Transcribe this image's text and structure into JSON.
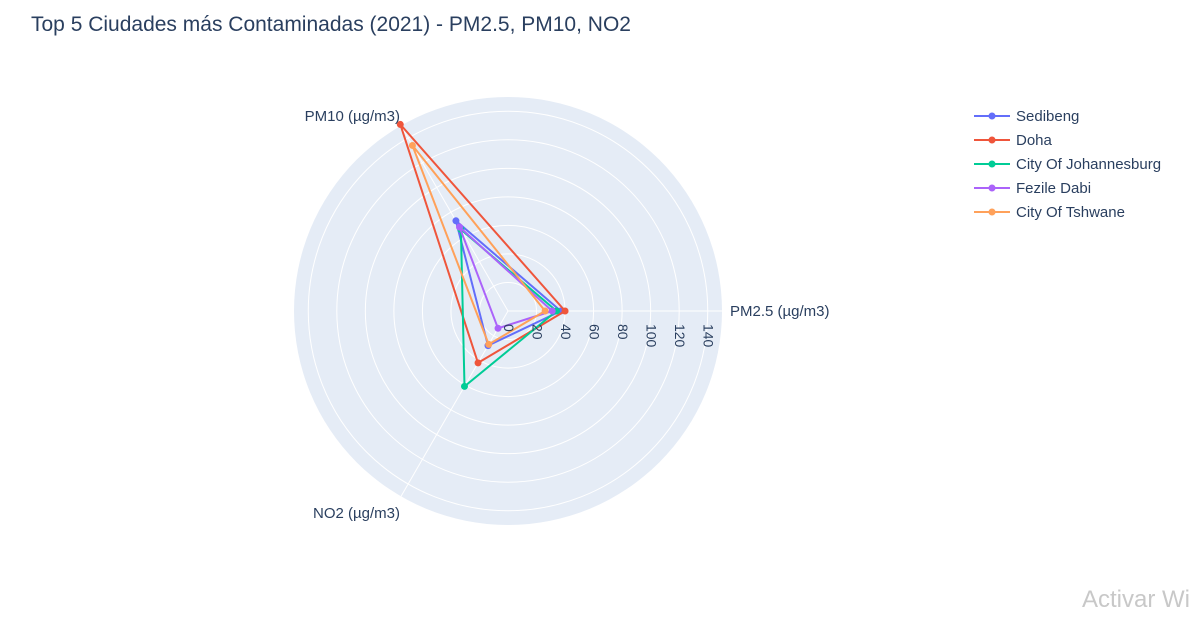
{
  "chart_data": {
    "type": "polar",
    "title": "Top 5 Ciudades más Contaminadas (2021) - PM2.5, PM10, NO2",
    "axes": [
      "PM2.5 (µg/m3)",
      "PM10 (µg/m3)",
      "NO2 (µg/m3)"
    ],
    "radial_ticks": [
      0,
      20,
      40,
      60,
      80,
      100,
      120,
      140
    ],
    "radial_range": [
      0,
      150
    ],
    "legend_position": "top-right",
    "series": [
      {
        "name": "Sedibeng",
        "color": "#636efa",
        "values": [
          37,
          73,
          28
        ]
      },
      {
        "name": "Doha",
        "color": "#ef553b",
        "values": [
          40,
          151,
          42
        ]
      },
      {
        "name": "City Of Johannesburg",
        "color": "#00cc96",
        "values": [
          34,
          66,
          61
        ]
      },
      {
        "name": "Fezile Dabi",
        "color": "#ab63fa",
        "values": [
          31,
          68,
          14
        ]
      },
      {
        "name": "City Of Tshwane",
        "color": "#ffa15a",
        "values": [
          26,
          134,
          27
        ]
      }
    ]
  },
  "watermark": "Activar Wi"
}
